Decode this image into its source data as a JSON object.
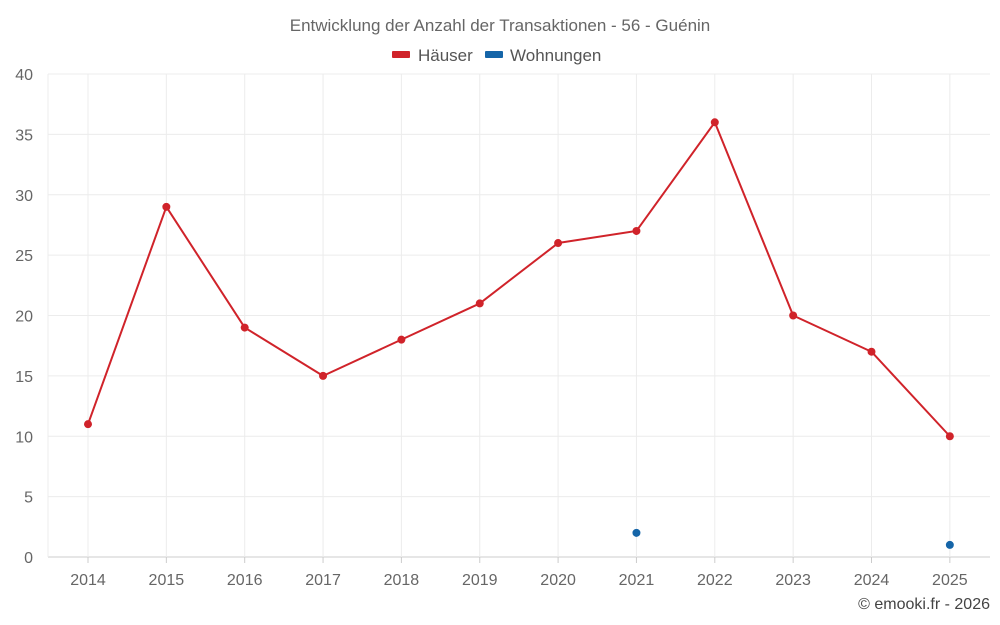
{
  "chart_data": {
    "type": "line",
    "title": "Entwicklung der Anzahl der Transaktionen - 56 - Guénin",
    "categories": [
      "2014",
      "2015",
      "2016",
      "2017",
      "2018",
      "2019",
      "2020",
      "2021",
      "2022",
      "2023",
      "2024",
      "2025"
    ],
    "ylim": [
      0,
      40
    ],
    "yticks": [
      0,
      5,
      10,
      15,
      20,
      25,
      30,
      35,
      40
    ],
    "grid": true,
    "legend_position": "top-center",
    "series": [
      {
        "name": "Häuser",
        "color": "#d0232a",
        "values": [
          11,
          29,
          19,
          15,
          18,
          21,
          26,
          27,
          36,
          20,
          17,
          10
        ]
      },
      {
        "name": "Wohnungen",
        "color": "#1565a8",
        "values": [
          null,
          null,
          null,
          null,
          null,
          null,
          null,
          2,
          null,
          null,
          null,
          1
        ]
      }
    ]
  },
  "credit": "© emooki.fr - 2026"
}
